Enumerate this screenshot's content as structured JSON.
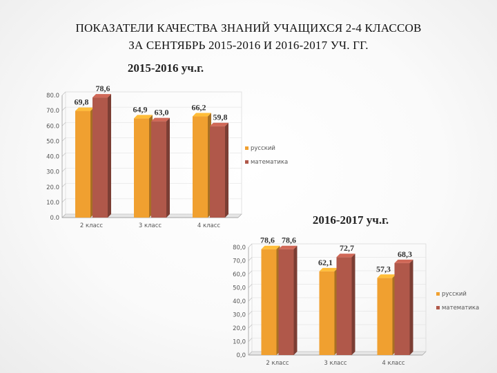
{
  "slide": {
    "title_line1": "ПОКАЗАТЕЛИ КАЧЕСТВА ЗНАНИЙ УЧАЩИХСЯ 2-4 КЛАССОВ",
    "title_line2": "ЗА СЕНТЯБРЬ 2015-2016 И 2016-2017 УЧ. ГГ."
  },
  "colors": {
    "russian": "#F0A030",
    "math": "#B0584A",
    "axis": "#888888"
  },
  "chart_data": [
    {
      "type": "bar",
      "title": "2015-2016 уч.г.",
      "categories": [
        "2 класс",
        "3 класс",
        "4 класс"
      ],
      "series": [
        {
          "name": "русский",
          "values": [
            69.8,
            64.9,
            66.2
          ]
        },
        {
          "name": "математика",
          "values": [
            78.6,
            63.0,
            59.8
          ]
        }
      ],
      "value_labels": [
        [
          "69,8",
          "64,9",
          "66,2"
        ],
        [
          "78,6",
          "63,0",
          "59,8"
        ]
      ],
      "ylim": [
        0,
        80
      ],
      "yticks": [
        "0.0",
        "10.0",
        "20.0",
        "30.0",
        "40.0",
        "50.0",
        "60.0",
        "70.0",
        "80.0"
      ],
      "legend": "right",
      "style": "3d"
    },
    {
      "type": "bar",
      "title": "2016-2017 уч.г.",
      "categories": [
        "2 класс",
        "3 класс",
        "4 класс"
      ],
      "series": [
        {
          "name": "русский",
          "values": [
            78.6,
            62.1,
            57.3
          ]
        },
        {
          "name": "математика",
          "values": [
            78.6,
            72.7,
            68.3
          ]
        }
      ],
      "value_labels": [
        [
          "78,6",
          "62,1",
          "57,3"
        ],
        [
          "78,6",
          "72,7",
          "68,3"
        ]
      ],
      "ylim": [
        0,
        80
      ],
      "yticks": [
        "0,0",
        "10,0",
        "20,0",
        "30,0",
        "40,0",
        "50,0",
        "60,0",
        "70,0",
        "80,0"
      ],
      "legend": "right",
      "style": "3d"
    }
  ]
}
